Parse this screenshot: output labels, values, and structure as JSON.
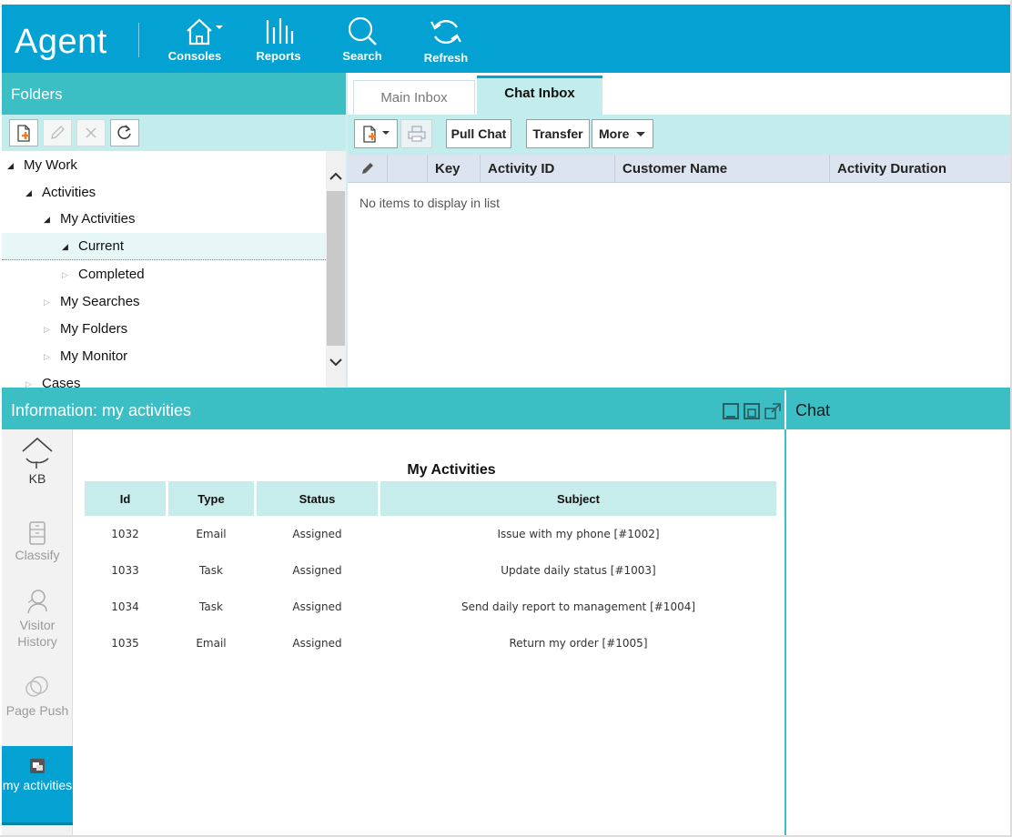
{
  "app": {
    "brand": "Agent",
    "nav": [
      {
        "label": "Consoles",
        "icon": "home-icon"
      },
      {
        "label": "Reports",
        "icon": "reports-icon"
      },
      {
        "label": "Search",
        "icon": "search-icon"
      },
      {
        "label": "Refresh",
        "icon": "refresh-icon"
      }
    ]
  },
  "folders": {
    "title": "Folders",
    "tree": [
      {
        "label": "My Work",
        "state": "open",
        "level": 0
      },
      {
        "label": "Activities",
        "state": "open",
        "level": 1
      },
      {
        "label": "My Activities",
        "state": "open",
        "level": 2
      },
      {
        "label": "Current",
        "state": "open",
        "level": 3,
        "selected": true
      },
      {
        "label": "Completed",
        "state": "closed",
        "level": 3
      },
      {
        "label": "My Searches",
        "state": "closed",
        "level": 2
      },
      {
        "label": "My Folders",
        "state": "closed",
        "level": 2
      },
      {
        "label": "My Monitor",
        "state": "closed",
        "level": 2
      },
      {
        "label": "Cases",
        "state": "closed",
        "level": 1
      }
    ]
  },
  "inbox": {
    "tabs": [
      {
        "label": "Main Inbox",
        "active": false
      },
      {
        "label": "Chat Inbox",
        "active": true
      }
    ],
    "toolbar": {
      "pull_chat": "Pull Chat",
      "transfer": "Transfer",
      "more": "More"
    },
    "columns": [
      "Key",
      "Activity ID",
      "Customer Name",
      "Activity Duration"
    ],
    "empty_message": "No items to display in list"
  },
  "information": {
    "title": "Information: my activities",
    "rail": [
      {
        "label": "KB",
        "icon": "kb-icon"
      },
      {
        "label": "Classify",
        "icon": "classify-icon"
      },
      {
        "label": "Visitor History",
        "icon": "visitor-history-icon"
      },
      {
        "label": "Page Push",
        "icon": "page-push-icon"
      },
      {
        "label": "my activities",
        "icon": "my-activities-icon",
        "active": true
      }
    ],
    "table_title": "My Activities",
    "columns": [
      "Id",
      "Type",
      "Status",
      "Subject"
    ],
    "rows": [
      [
        "1032",
        "Email",
        "Assigned",
        "Issue with my phone [#1002]"
      ],
      [
        "1033",
        "Task",
        "Assigned",
        "Update daily status [#1003]"
      ],
      [
        "1034",
        "Task",
        "Assigned",
        "Send daily report to management [#1004]"
      ],
      [
        "1035",
        "Email",
        "Assigned",
        "Return my order [#1005]"
      ]
    ]
  },
  "chat": {
    "title": "Chat"
  },
  "colors": {
    "topbar": "#03a2d3",
    "panel_header": "#3bbfc5",
    "toolbar": "#c3ecec",
    "grid_header": "#dbe4ef"
  }
}
